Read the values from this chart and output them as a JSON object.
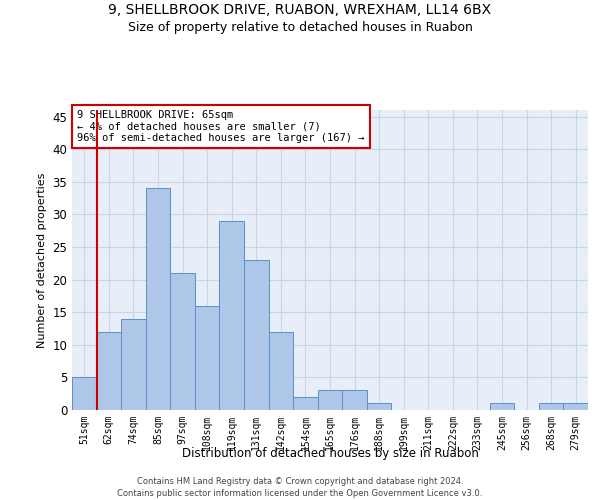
{
  "title1": "9, SHELLBROOK DRIVE, RUABON, WREXHAM, LL14 6BX",
  "title2": "Size of property relative to detached houses in Ruabon",
  "xlabel": "Distribution of detached houses by size in Ruabon",
  "ylabel": "Number of detached properties",
  "categories": [
    "51sqm",
    "62sqm",
    "74sqm",
    "85sqm",
    "97sqm",
    "108sqm",
    "119sqm",
    "131sqm",
    "142sqm",
    "154sqm",
    "165sqm",
    "176sqm",
    "188sqm",
    "199sqm",
    "211sqm",
    "222sqm",
    "233sqm",
    "245sqm",
    "256sqm",
    "268sqm",
    "279sqm"
  ],
  "values": [
    5,
    12,
    14,
    34,
    21,
    16,
    29,
    23,
    12,
    2,
    3,
    3,
    1,
    0,
    0,
    0,
    0,
    1,
    0,
    1,
    1
  ],
  "bar_color": "#aec6e8",
  "bar_edge_color": "#5b8fc9",
  "vline_x_index": 1,
  "vline_color": "#cc0000",
  "annotation_text": "9 SHELLBROOK DRIVE: 65sqm\n← 4% of detached houses are smaller (7)\n96% of semi-detached houses are larger (167) →",
  "annotation_box_color": "#ffffff",
  "annotation_box_edge": "#cc0000",
  "ylim": [
    0,
    46
  ],
  "yticks": [
    0,
    5,
    10,
    15,
    20,
    25,
    30,
    35,
    40,
    45
  ],
  "footer1": "Contains HM Land Registry data © Crown copyright and database right 2024.",
  "footer2": "Contains public sector information licensed under the Open Government Licence v3.0.",
  "bg_color": "#ffffff",
  "plot_bg_color": "#e8eef8",
  "grid_color": "#c8d4e8",
  "title1_fontsize": 10,
  "title2_fontsize": 9
}
